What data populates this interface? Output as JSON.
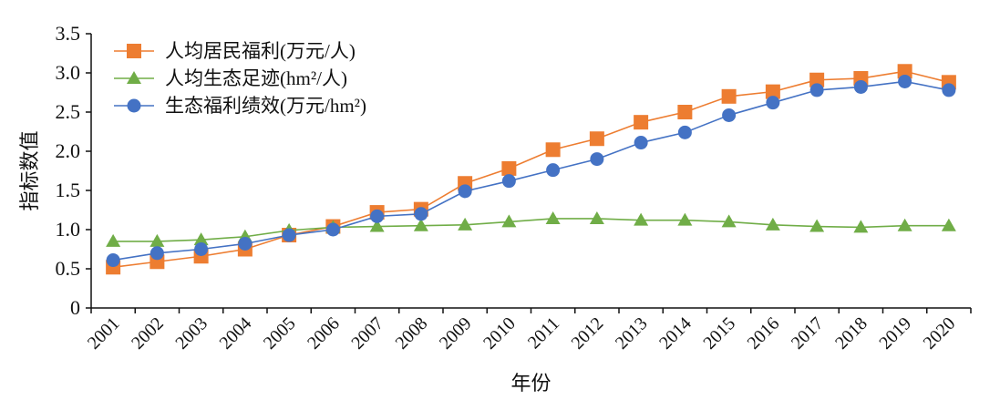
{
  "chart_data": {
    "type": "line",
    "title": "",
    "xlabel": "年份",
    "ylabel": "指标数值",
    "categories": [
      "2001",
      "2002",
      "2003",
      "2004",
      "2005",
      "2006",
      "2007",
      "2008",
      "2009",
      "2010",
      "2011",
      "2012",
      "2013",
      "2014",
      "2015",
      "2016",
      "2017",
      "2018",
      "2019",
      "2020"
    ],
    "ylim": [
      0,
      3.5
    ],
    "yticks": [
      "0",
      "0.5",
      "1.0",
      "1.5",
      "2.0",
      "2.5",
      "3.0",
      "3.5"
    ],
    "grid": false,
    "legend_position": "top-left",
    "series": [
      {
        "name": "人均居民福利(万元/人)",
        "marker": "square",
        "color": "#ED7D31",
        "values": [
          0.52,
          0.59,
          0.66,
          0.75,
          0.93,
          1.04,
          1.22,
          1.26,
          1.59,
          1.78,
          2.02,
          2.16,
          2.37,
          2.5,
          2.7,
          2.76,
          2.91,
          2.93,
          3.02,
          2.88
        ]
      },
      {
        "name": "人均生态足迹(hm²/人)",
        "marker": "triangle",
        "color": "#70AD47",
        "values": [
          0.85,
          0.85,
          0.87,
          0.91,
          0.99,
          1.03,
          1.04,
          1.05,
          1.06,
          1.1,
          1.14,
          1.14,
          1.12,
          1.12,
          1.1,
          1.06,
          1.04,
          1.03,
          1.05,
          1.05
        ]
      },
      {
        "name": "生态福利绩效(万元/hm²)",
        "marker": "circle",
        "color": "#4472C4",
        "values": [
          0.61,
          0.7,
          0.75,
          0.82,
          0.93,
          1.0,
          1.17,
          1.2,
          1.49,
          1.62,
          1.76,
          1.9,
          2.11,
          2.24,
          2.46,
          2.62,
          2.78,
          2.82,
          2.89,
          2.78
        ]
      }
    ]
  }
}
